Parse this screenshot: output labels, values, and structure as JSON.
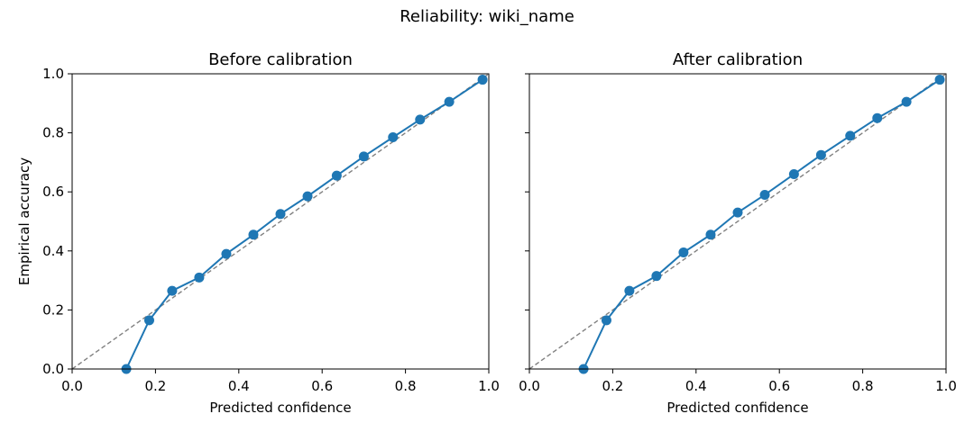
{
  "title": "Reliability: wiki_name",
  "chart_data": [
    {
      "type": "line",
      "title": "Before calibration",
      "xlabel": "Predicted confidence",
      "ylabel": "Empirical accuracy",
      "xlim": [
        0.0,
        1.0
      ],
      "ylim": [
        0.0,
        1.0
      ],
      "xticks": [
        "0.0",
        "0.2",
        "0.4",
        "0.6",
        "0.8",
        "1.0"
      ],
      "yticks": [
        "0.0",
        "0.2",
        "0.4",
        "0.6",
        "0.8",
        "1.0"
      ],
      "grid": false,
      "diagonal": {
        "from": [
          0,
          0
        ],
        "to": [
          1,
          1
        ],
        "color": "#808080",
        "style": "dashed"
      },
      "series": [
        {
          "color": "#1f77b4",
          "x": [
            0.13,
            0.185,
            0.24,
            0.305,
            0.37,
            0.435,
            0.5,
            0.565,
            0.635,
            0.7,
            0.77,
            0.835,
            0.905,
            0.985
          ],
          "y": [
            0.0,
            0.165,
            0.265,
            0.31,
            0.39,
            0.455,
            0.525,
            0.585,
            0.655,
            0.72,
            0.785,
            0.845,
            0.905,
            0.98
          ]
        }
      ]
    },
    {
      "type": "line",
      "title": "After calibration",
      "xlabel": "Predicted confidence",
      "ylabel": "",
      "xlim": [
        0.0,
        1.0
      ],
      "ylim": [
        0.0,
        1.0
      ],
      "xticks": [
        "0.0",
        "0.2",
        "0.4",
        "0.6",
        "0.8",
        "1.0"
      ],
      "yticks": [],
      "grid": false,
      "diagonal": {
        "from": [
          0,
          0
        ],
        "to": [
          1,
          1
        ],
        "color": "#808080",
        "style": "dashed"
      },
      "series": [
        {
          "color": "#1f77b4",
          "x": [
            0.13,
            0.185,
            0.24,
            0.305,
            0.37,
            0.435,
            0.5,
            0.565,
            0.635,
            0.7,
            0.77,
            0.835,
            0.905,
            0.985
          ],
          "y": [
            0.0,
            0.165,
            0.265,
            0.315,
            0.395,
            0.455,
            0.53,
            0.59,
            0.66,
            0.725,
            0.79,
            0.85,
            0.905,
            0.98
          ]
        }
      ]
    }
  ]
}
